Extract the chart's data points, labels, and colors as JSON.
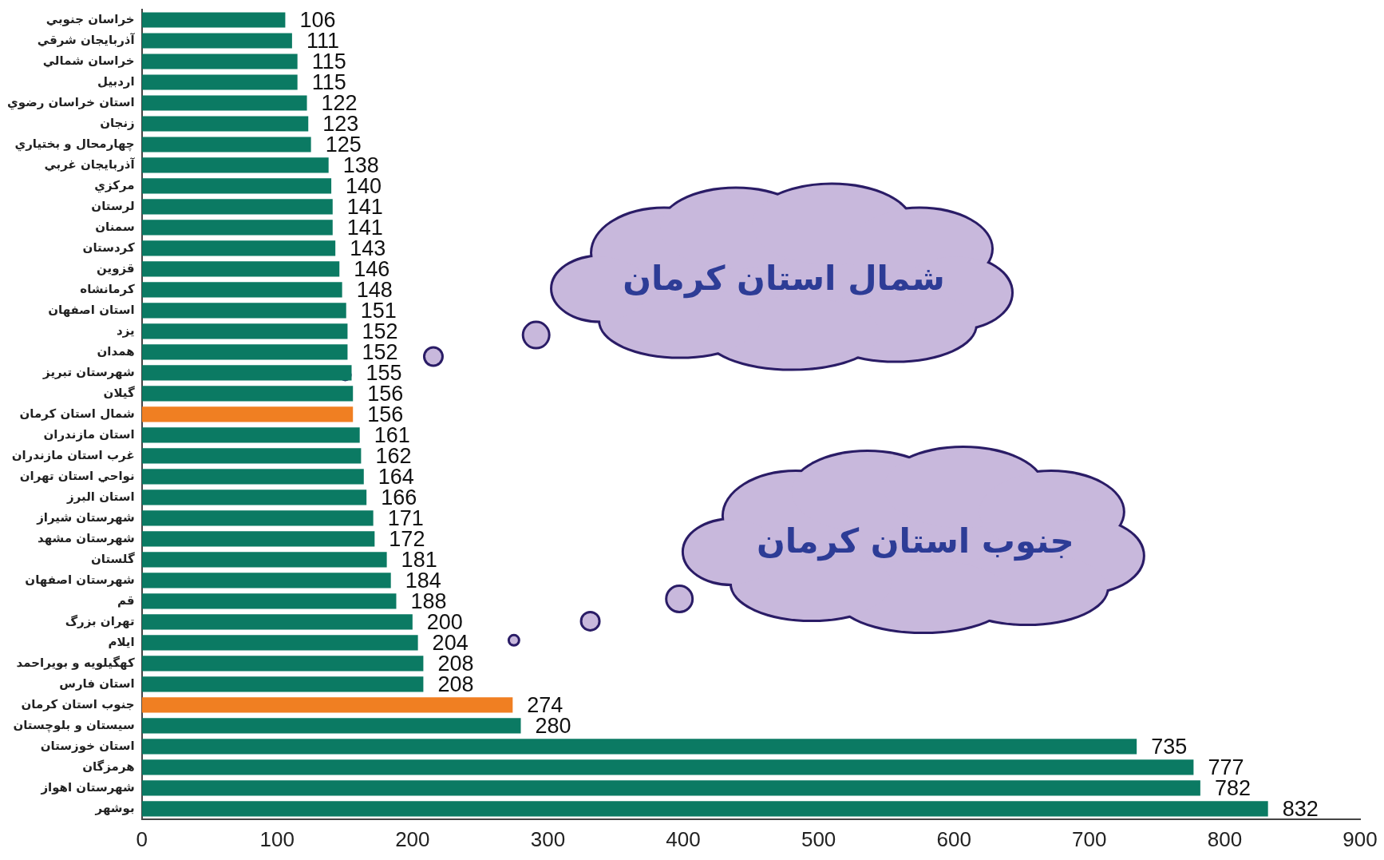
{
  "chart_data": {
    "type": "bar",
    "orientation": "horizontal",
    "categories": [
      "خراسان جنوبي",
      "آذربايجان شرقي",
      "خراسان شمالي",
      "اردبيل",
      "استان خراسان رضوي",
      "زنجان",
      "چهارمحال و بختياري",
      "آذربايجان غربي",
      "مركزي",
      "لرستان",
      "سمنان",
      "كردستان",
      "قزوين",
      "كرمانشاه",
      "استان اصفهان",
      "يزد",
      "همدان",
      "شهرستان تبريز",
      "گيلان",
      "شمال استان كرمان",
      "استان مازندران",
      "غرب استان مازندران",
      "نواحي استان تهران",
      "استان البرز",
      "شهرستان شيراز",
      "شهرستان مشهد",
      "گلستان",
      "شهرستان اصفهان",
      "قم",
      "تهران بزرگ",
      "ايلام",
      "كهگيلويه و بويراحمد",
      "استان فارس",
      "جنوب استان كرمان",
      "سيستان و بلوچستان",
      "استان خوزستان",
      "هرمزگان",
      "شهرستان اهواز",
      "بوشهر"
    ],
    "values": [
      106,
      111,
      115,
      115,
      122,
      123,
      125,
      138,
      140,
      141,
      141,
      143,
      146,
      148,
      151,
      152,
      152,
      155,
      156,
      156,
      161,
      162,
      164,
      166,
      171,
      172,
      181,
      184,
      188,
      200,
      204,
      208,
      208,
      274,
      280,
      735,
      777,
      782,
      832
    ],
    "colors": [
      "#0b7a63",
      "#0b7a63",
      "#0b7a63",
      "#0b7a63",
      "#0b7a63",
      "#0b7a63",
      "#0b7a63",
      "#0b7a63",
      "#0b7a63",
      "#0b7a63",
      "#0b7a63",
      "#0b7a63",
      "#0b7a63",
      "#0b7a63",
      "#0b7a63",
      "#0b7a63",
      "#0b7a63",
      "#0b7a63",
      "#0b7a63",
      "#f07f22",
      "#0b7a63",
      "#0b7a63",
      "#0b7a63",
      "#0b7a63",
      "#0b7a63",
      "#0b7a63",
      "#0b7a63",
      "#0b7a63",
      "#0b7a63",
      "#0b7a63",
      "#0b7a63",
      "#0b7a63",
      "#0b7a63",
      "#f07f22",
      "#0b7a63",
      "#0b7a63",
      "#0b7a63",
      "#0b7a63",
      "#0b7a63"
    ],
    "xlim": [
      0,
      900
    ],
    "xticks": [
      0,
      100,
      200,
      300,
      400,
      500,
      600,
      700,
      800,
      900
    ],
    "data_labels": true,
    "grid": false,
    "legend": false,
    "annotations": [
      "شمال استان كرمان",
      "جنوب استان كرمان"
    ]
  }
}
